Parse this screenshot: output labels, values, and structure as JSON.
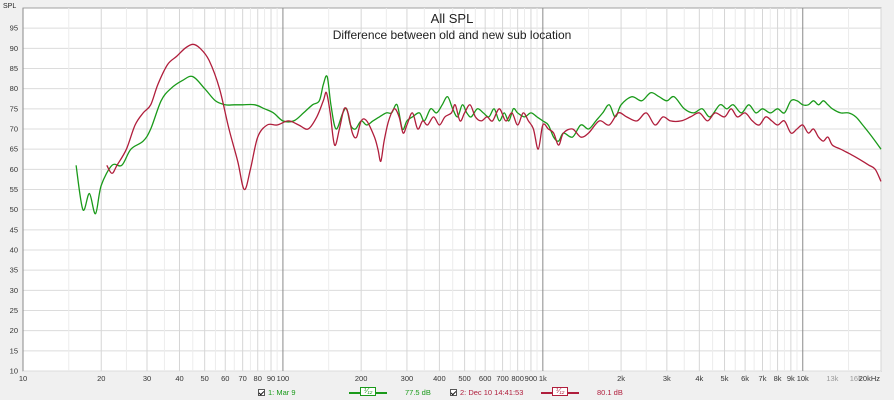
{
  "chart_data": {
    "type": "line",
    "title": "All SPL",
    "subtitle": "Difference between old and new sub location",
    "ylabel": "SPL",
    "xscale": "log",
    "xlim": [
      10,
      20000
    ],
    "ylim": [
      10,
      100
    ],
    "y_ticks": [
      10,
      15,
      20,
      25,
      30,
      35,
      40,
      45,
      50,
      55,
      60,
      65,
      70,
      75,
      80,
      85,
      90,
      95
    ],
    "x_ticks": [
      {
        "v": 10,
        "label": "10",
        "minor": false
      },
      {
        "v": 20,
        "label": "20",
        "minor": false
      },
      {
        "v": 30,
        "label": "30",
        "minor": false
      },
      {
        "v": 40,
        "label": "40",
        "minor": false
      },
      {
        "v": 50,
        "label": "50",
        "minor": false
      },
      {
        "v": 60,
        "label": "60",
        "minor": false
      },
      {
        "v": 70,
        "label": "70",
        "minor": false
      },
      {
        "v": 80,
        "label": "80",
        "minor": false
      },
      {
        "v": 90,
        "label": "90",
        "minor": false
      },
      {
        "v": 100,
        "label": "100",
        "minor": false
      },
      {
        "v": 200,
        "label": "200",
        "minor": false
      },
      {
        "v": 300,
        "label": "300",
        "minor": false
      },
      {
        "v": 400,
        "label": "400",
        "minor": false
      },
      {
        "v": 500,
        "label": "500",
        "minor": false
      },
      {
        "v": 600,
        "label": "600",
        "minor": false
      },
      {
        "v": 700,
        "label": "700",
        "minor": false
      },
      {
        "v": 800,
        "label": "800",
        "minor": false
      },
      {
        "v": 900,
        "label": "900",
        "minor": false
      },
      {
        "v": 1000,
        "label": "1k",
        "minor": false
      },
      {
        "v": 2000,
        "label": "2k",
        "minor": false
      },
      {
        "v": 3000,
        "label": "3k",
        "minor": false
      },
      {
        "v": 4000,
        "label": "4k",
        "minor": false
      },
      {
        "v": 5000,
        "label": "5k",
        "minor": false
      },
      {
        "v": 6000,
        "label": "6k",
        "minor": false
      },
      {
        "v": 7000,
        "label": "7k",
        "minor": false
      },
      {
        "v": 8000,
        "label": "8k",
        "minor": false
      },
      {
        "v": 9000,
        "label": "9k",
        "minor": false
      },
      {
        "v": 10000,
        "label": "10k",
        "minor": false
      },
      {
        "v": 13000,
        "label": "13k",
        "minor": true
      },
      {
        "v": 16000,
        "label": "16k",
        "minor": true
      },
      {
        "v": 20000,
        "label": "20kHz",
        "minor": false
      }
    ],
    "grid": true,
    "legend_placement": "bottom",
    "series": [
      {
        "name": "1: Mar 9",
        "color": "#1a9a1a",
        "legend_value": "77.5 dB",
        "points": [
          [
            16,
            61
          ],
          [
            17,
            50
          ],
          [
            18,
            54
          ],
          [
            19,
            49
          ],
          [
            20,
            56
          ],
          [
            22,
            61
          ],
          [
            24,
            61
          ],
          [
            26,
            65
          ],
          [
            29,
            67
          ],
          [
            31,
            70
          ],
          [
            34,
            77
          ],
          [
            37,
            80
          ],
          [
            41,
            82
          ],
          [
            45,
            83
          ],
          [
            50,
            80
          ],
          [
            55,
            77
          ],
          [
            60,
            76
          ],
          [
            65,
            76
          ],
          [
            70,
            76
          ],
          [
            78,
            76
          ],
          [
            85,
            75
          ],
          [
            92,
            74
          ],
          [
            100,
            72
          ],
          [
            110,
            72
          ],
          [
            120,
            74
          ],
          [
            130,
            76
          ],
          [
            138,
            77
          ],
          [
            143,
            81
          ],
          [
            148,
            83
          ],
          [
            153,
            76
          ],
          [
            160,
            70
          ],
          [
            170,
            74
          ],
          [
            176,
            75
          ],
          [
            182,
            71
          ],
          [
            190,
            70
          ],
          [
            200,
            72
          ],
          [
            210,
            71
          ],
          [
            222,
            72
          ],
          [
            235,
            73
          ],
          [
            250,
            74
          ],
          [
            262,
            74
          ],
          [
            275,
            76
          ],
          [
            288,
            70
          ],
          [
            300,
            72
          ],
          [
            315,
            73
          ],
          [
            335,
            74
          ],
          [
            350,
            72
          ],
          [
            370,
            75
          ],
          [
            390,
            74
          ],
          [
            410,
            76
          ],
          [
            430,
            78
          ],
          [
            450,
            75
          ],
          [
            470,
            73
          ],
          [
            490,
            76
          ],
          [
            510,
            74
          ],
          [
            530,
            73
          ],
          [
            560,
            75
          ],
          [
            590,
            74
          ],
          [
            620,
            73
          ],
          [
            650,
            75
          ],
          [
            680,
            72
          ],
          [
            710,
            74
          ],
          [
            740,
            72
          ],
          [
            770,
            75
          ],
          [
            800,
            74
          ],
          [
            850,
            73
          ],
          [
            900,
            74
          ],
          [
            950,
            73
          ],
          [
            1000,
            72
          ],
          [
            1050,
            71
          ],
          [
            1100,
            68
          ],
          [
            1150,
            67
          ],
          [
            1200,
            69
          ],
          [
            1300,
            68
          ],
          [
            1400,
            71
          ],
          [
            1500,
            70
          ],
          [
            1600,
            72
          ],
          [
            1700,
            74
          ],
          [
            1800,
            76
          ],
          [
            1900,
            73
          ],
          [
            2000,
            76
          ],
          [
            2200,
            78
          ],
          [
            2400,
            77
          ],
          [
            2600,
            79
          ],
          [
            2800,
            78
          ],
          [
            3000,
            77
          ],
          [
            3200,
            78
          ],
          [
            3500,
            75
          ],
          [
            3800,
            74
          ],
          [
            4100,
            75
          ],
          [
            4400,
            73
          ],
          [
            4800,
            76
          ],
          [
            5100,
            75
          ],
          [
            5400,
            76
          ],
          [
            5800,
            74
          ],
          [
            6200,
            76
          ],
          [
            6600,
            74
          ],
          [
            7000,
            75
          ],
          [
            7500,
            74
          ],
          [
            8000,
            75
          ],
          [
            8500,
            74
          ],
          [
            9000,
            77
          ],
          [
            9500,
            77
          ],
          [
            10000,
            76
          ],
          [
            10500,
            76
          ],
          [
            11000,
            77
          ],
          [
            11500,
            76
          ],
          [
            12000,
            77
          ],
          [
            12500,
            76
          ],
          [
            13000,
            75
          ],
          [
            14000,
            74
          ],
          [
            15000,
            74
          ],
          [
            16000,
            73
          ],
          [
            17000,
            71
          ],
          [
            18000,
            69
          ],
          [
            19000,
            67
          ],
          [
            20000,
            65
          ]
        ]
      },
      {
        "name": "2: Dec 10 14:41:53",
        "color": "#b01e3c",
        "legend_value": "80.1 dB",
        "points": [
          [
            21,
            61
          ],
          [
            22,
            59
          ],
          [
            23,
            61
          ],
          [
            25,
            65
          ],
          [
            27,
            71
          ],
          [
            29,
            74
          ],
          [
            31,
            76
          ],
          [
            33,
            81
          ],
          [
            36,
            86
          ],
          [
            39,
            88
          ],
          [
            42,
            90
          ],
          [
            45,
            91
          ],
          [
            48,
            90
          ],
          [
            52,
            87
          ],
          [
            57,
            80
          ],
          [
            62,
            70
          ],
          [
            67,
            62
          ],
          [
            71,
            55
          ],
          [
            75,
            60
          ],
          [
            80,
            68
          ],
          [
            87,
            71
          ],
          [
            95,
            71
          ],
          [
            105,
            72
          ],
          [
            115,
            71
          ],
          [
            125,
            70
          ],
          [
            135,
            73
          ],
          [
            143,
            77
          ],
          [
            147,
            79
          ],
          [
            152,
            74
          ],
          [
            158,
            66
          ],
          [
            165,
            70
          ],
          [
            172,
            75
          ],
          [
            178,
            74
          ],
          [
            185,
            69
          ],
          [
            192,
            68
          ],
          [
            200,
            72
          ],
          [
            210,
            72
          ],
          [
            225,
            68
          ],
          [
            232,
            65
          ],
          [
            238,
            62
          ],
          [
            245,
            67
          ],
          [
            255,
            72
          ],
          [
            268,
            75
          ],
          [
            280,
            73
          ],
          [
            290,
            69
          ],
          [
            300,
            71
          ],
          [
            315,
            74
          ],
          [
            330,
            70
          ],
          [
            345,
            72
          ],
          [
            360,
            71
          ],
          [
            380,
            73
          ],
          [
            400,
            71
          ],
          [
            420,
            73
          ],
          [
            445,
            74
          ],
          [
            460,
            76
          ],
          [
            480,
            72
          ],
          [
            500,
            74
          ],
          [
            525,
            76
          ],
          [
            550,
            73
          ],
          [
            580,
            72
          ],
          [
            610,
            73
          ],
          [
            640,
            72
          ],
          [
            680,
            75
          ],
          [
            720,
            72
          ],
          [
            760,
            74
          ],
          [
            800,
            71
          ],
          [
            840,
            74
          ],
          [
            880,
            72
          ],
          [
            920,
            70
          ],
          [
            960,
            65
          ],
          [
            1000,
            71
          ],
          [
            1050,
            70
          ],
          [
            1100,
            69
          ],
          [
            1150,
            66
          ],
          [
            1200,
            69
          ],
          [
            1300,
            70
          ],
          [
            1400,
            68
          ],
          [
            1500,
            69
          ],
          [
            1650,
            72
          ],
          [
            1800,
            71
          ],
          [
            1950,
            74
          ],
          [
            2100,
            73
          ],
          [
            2300,
            72
          ],
          [
            2500,
            74
          ],
          [
            2700,
            71
          ],
          [
            2900,
            73
          ],
          [
            3100,
            72
          ],
          [
            3400,
            72
          ],
          [
            3700,
            73
          ],
          [
            4000,
            74
          ],
          [
            4300,
            72
          ],
          [
            4600,
            74
          ],
          [
            5000,
            73
          ],
          [
            5300,
            75
          ],
          [
            5600,
            73
          ],
          [
            6000,
            74
          ],
          [
            6400,
            72
          ],
          [
            6800,
            71
          ],
          [
            7200,
            73
          ],
          [
            7600,
            72
          ],
          [
            8000,
            71
          ],
          [
            8500,
            72
          ],
          [
            9000,
            69
          ],
          [
            9500,
            70
          ],
          [
            10000,
            71
          ],
          [
            10500,
            69
          ],
          [
            11000,
            70
          ],
          [
            11500,
            68
          ],
          [
            12000,
            67
          ],
          [
            12500,
            68
          ],
          [
            13000,
            66
          ],
          [
            14000,
            65
          ],
          [
            15000,
            64
          ],
          [
            16000,
            63
          ],
          [
            17000,
            62
          ],
          [
            18000,
            61
          ],
          [
            19000,
            60
          ],
          [
            20000,
            57
          ]
        ]
      }
    ]
  }
}
